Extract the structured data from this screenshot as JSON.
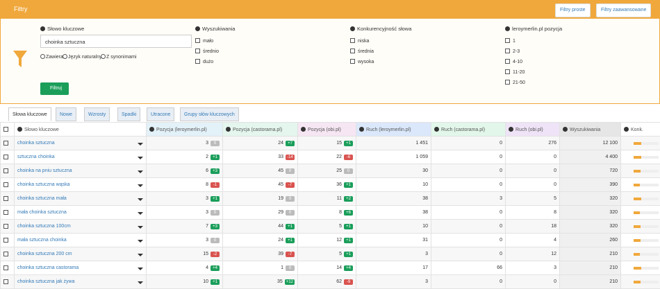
{
  "header": {
    "title": "Filtry",
    "buttons": [
      "Filtry proste",
      "Filtry zaawansowane"
    ]
  },
  "filters": {
    "keyword": {
      "label": "Słowo kluczowe",
      "value": "choinka sztuczna",
      "options": [
        "Zawiera",
        "Język naturalny",
        "Z synonimami"
      ]
    },
    "groups": [
      {
        "label": "Wyszukiwania",
        "options": [
          "mało",
          "średnio",
          "dużo"
        ]
      },
      {
        "label": "Konkurencyjność słowa",
        "options": [
          "niska",
          "średnia",
          "wysoka"
        ]
      },
      {
        "label": "leroymerlin.pl pozycja",
        "options": [
          "1",
          "2-3",
          "4-10",
          "11-20",
          "21-50"
        ]
      }
    ],
    "submit": "Filtruj"
  },
  "tabs": [
    "Słowa kluczowe",
    "Nowe",
    "Wzrosty",
    "Spadki",
    "Utracone",
    "Grupy słów kluczowych"
  ],
  "table": {
    "columns": [
      "Słowo kluczowe",
      "Pozycja (leroymerlin.pl)",
      "Pozycja (castorama.pl)",
      "Pozycja (obi.pl)",
      "Ruch (leroymerlin.pl)",
      "Ruch (castorama.pl)",
      "Ruch (obi.pl)",
      "Wyszukiwania",
      "Konk."
    ],
    "rows": [
      {
        "keyword": "choinka sztuczna",
        "positions": [
          {
            "value": "3",
            "change": "0"
          },
          {
            "value": "24",
            "change": "+7"
          },
          {
            "value": "15",
            "change": "+1"
          }
        ],
        "traffic": [
          "1 451",
          "0",
          "276"
        ],
        "searches": "12 100",
        "competition": 30
      },
      {
        "keyword": "sztuczna choinka",
        "positions": [
          {
            "value": "2",
            "change": "+1"
          },
          {
            "value": "33",
            "change": "-14"
          },
          {
            "value": "22",
            "change": "-6"
          }
        ],
        "traffic": [
          "1 059",
          "0",
          "0"
        ],
        "searches": "4 400",
        "competition": 30
      },
      {
        "keyword": "choinka na pniu sztuczna",
        "positions": [
          {
            "value": "6",
            "change": "+3"
          },
          {
            "value": "45",
            "change": "0"
          },
          {
            "value": "25",
            "change": "0"
          }
        ],
        "traffic": [
          "30",
          "0",
          "0"
        ],
        "searches": "720",
        "competition": 28
      },
      {
        "keyword": "choinka sztuczna wąska",
        "positions": [
          {
            "value": "8",
            "change": "-1"
          },
          {
            "value": "45",
            "change": "-7"
          },
          {
            "value": "36",
            "change": "+1"
          }
        ],
        "traffic": [
          "10",
          "0",
          "0"
        ],
        "searches": "390",
        "competition": 25
      },
      {
        "keyword": "choinka sztuczna mała",
        "positions": [
          {
            "value": "3",
            "change": "+1"
          },
          {
            "value": "19",
            "change": "0"
          },
          {
            "value": "11",
            "change": "+2"
          }
        ],
        "traffic": [
          "38",
          "3",
          "5"
        ],
        "searches": "320",
        "competition": 30
      },
      {
        "keyword": "mała choinka sztuczna",
        "positions": [
          {
            "value": "3",
            "change": "0"
          },
          {
            "value": "29",
            "change": "0"
          },
          {
            "value": "8",
            "change": "+6"
          }
        ],
        "traffic": [
          "38",
          "0",
          "8"
        ],
        "searches": "320",
        "competition": 25
      },
      {
        "keyword": "choinka sztuczna 100cm",
        "positions": [
          {
            "value": "7",
            "change": "+3"
          },
          {
            "value": "44",
            "change": "+1"
          },
          {
            "value": "5",
            "change": "+1"
          }
        ],
        "traffic": [
          "10",
          "0",
          "18"
        ],
        "searches": "320",
        "competition": 28
      },
      {
        "keyword": "mała sztuczna choinka",
        "positions": [
          {
            "value": "3",
            "change": "0"
          },
          {
            "value": "24",
            "change": "+1"
          },
          {
            "value": "12",
            "change": "+1"
          }
        ],
        "traffic": [
          "31",
          "0",
          "4"
        ],
        "searches": "260",
        "competition": 28
      },
      {
        "keyword": "choinka sztuczna 200 cm",
        "positions": [
          {
            "value": "15",
            "change": "-2"
          },
          {
            "value": "39",
            "change": "-7"
          },
          {
            "value": "5",
            "change": "+1"
          }
        ],
        "traffic": [
          "3",
          "0",
          "12"
        ],
        "searches": "210",
        "competition": 25
      },
      {
        "keyword": "choinka sztuczna castorama",
        "positions": [
          {
            "value": "4",
            "change": "+4"
          },
          {
            "value": "1",
            "change": "0"
          },
          {
            "value": "14",
            "change": "+4"
          }
        ],
        "traffic": [
          "17",
          "66",
          "3"
        ],
        "searches": "210",
        "competition": 30
      },
      {
        "keyword": "choinka sztuczna jak żywa",
        "positions": [
          {
            "value": "10",
            "change": "+1"
          },
          {
            "value": "35",
            "change": "+12"
          },
          {
            "value": "62",
            "change": "-9"
          }
        ],
        "traffic": [
          "3",
          "0",
          "0"
        ],
        "searches": "210",
        "competition": 28
      }
    ]
  }
}
